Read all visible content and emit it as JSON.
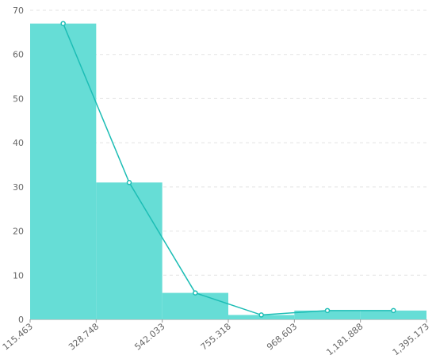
{
  "chart_data": {
    "type": "histogram",
    "bins": [
      115.463,
      328.748,
      542.033,
      755.318,
      968.603,
      {
        "value": 1181.888,
        "label": "1,181.888"
      },
      {
        "value": 1395.173,
        "label": "1,395.173"
      }
    ],
    "counts": [
      67,
      31,
      6,
      1,
      2,
      2
    ],
    "color": "#66ddd6",
    "frequency_polygon": true,
    "line_color": "#1dbdb5",
    "xlim": [
      115.463,
      1395.173
    ],
    "xticks": [
      115.463,
      328.748,
      542.033,
      755.318,
      968.603,
      {
        "value": 1181.888,
        "label": "1,181.888"
      },
      {
        "value": 1395.173,
        "label": "1,395.173"
      }
    ],
    "ylim": [
      0,
      70
    ],
    "yticks": [
      0,
      10,
      20,
      30,
      40,
      50,
      60,
      70
    ],
    "grid": true
  }
}
